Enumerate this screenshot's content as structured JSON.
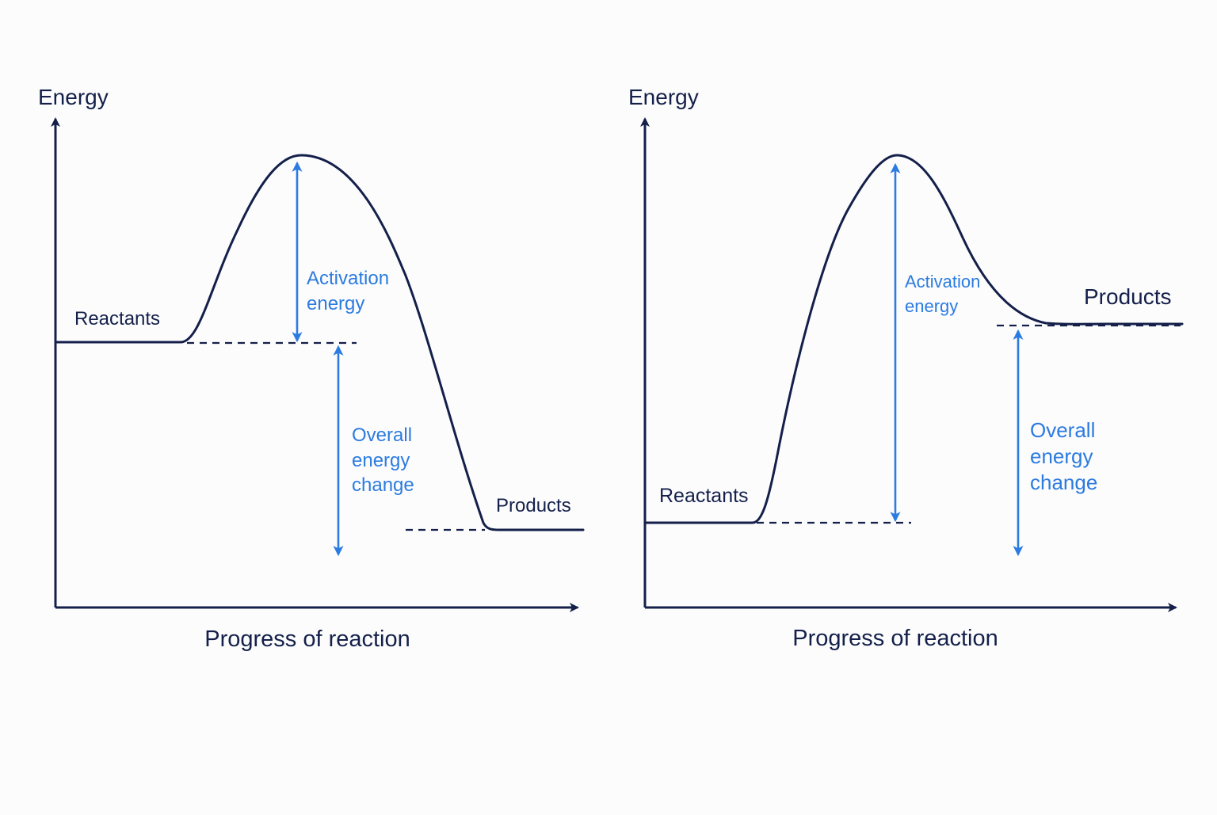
{
  "colors": {
    "ink": "#14204a",
    "accent": "#2b7be0",
    "background": "#fcfcfd"
  },
  "diagrams": [
    {
      "id": "exothermic",
      "y_axis_label": "Energy",
      "x_axis_label": "Progress of reaction",
      "reactants_label": "Reactants",
      "products_label": "Products",
      "activation_label": [
        "Activation",
        "energy"
      ],
      "overall_label": [
        "Overall",
        "energy",
        "change"
      ]
    },
    {
      "id": "endothermic",
      "y_axis_label": "Energy",
      "x_axis_label": "Progress of reaction",
      "reactants_label": "Reactants",
      "products_label": "Products",
      "activation_label": [
        "Activation",
        "energy"
      ],
      "overall_label": [
        "Overall",
        "energy",
        "change"
      ]
    }
  ]
}
